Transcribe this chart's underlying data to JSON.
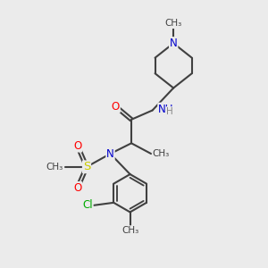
{
  "background_color": "#ebebeb",
  "atom_colors": {
    "C": "#404040",
    "N": "#0000cc",
    "O": "#ff0000",
    "S": "#cccc00",
    "Cl": "#00aa00",
    "H": "#888888"
  },
  "bond_color": "#404040",
  "bond_width": 1.5,
  "font_size": 8.5,
  "figsize": [
    3.0,
    3.0
  ],
  "dpi": 100,
  "xlim": [
    0,
    10
  ],
  "ylim": [
    0,
    10
  ]
}
